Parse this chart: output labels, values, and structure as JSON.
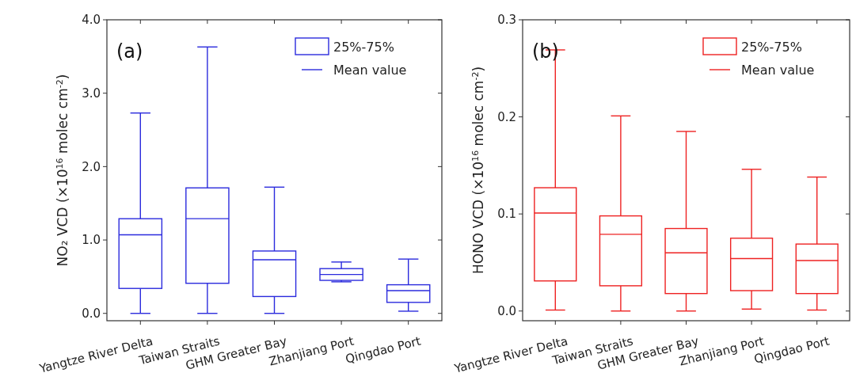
{
  "chart_data": [
    {
      "type": "box",
      "ylabel": "NO₂ VCD (×10$^{16}$ molec cm$^{-2}$)",
      "color": "#2b2bdd",
      "categories": [
        "Yangtze River Delta",
        "Taiwan Straits",
        "GHM Greater Bay",
        "Zhanjiang Port",
        "Qingdao Port"
      ],
      "boxes": [
        {
          "low": 0.0,
          "q1": 0.34,
          "mean": 1.07,
          "q3": 1.29,
          "high": 2.73
        },
        {
          "low": 0.0,
          "q1": 0.41,
          "mean": 1.29,
          "q3": 1.71,
          "high": 3.63
        },
        {
          "low": 0.0,
          "q1": 0.23,
          "mean": 0.73,
          "q3": 0.85,
          "high": 1.72
        },
        {
          "low": 0.43,
          "q1": 0.45,
          "mean": 0.53,
          "q3": 0.61,
          "high": 0.7
        },
        {
          "low": 0.03,
          "q1": 0.15,
          "mean": 0.31,
          "q3": 0.39,
          "high": 0.74
        }
      ],
      "ylim": [
        -0.1,
        4.0
      ],
      "yticks": [
        {
          "value": 0,
          "label": "0.0"
        },
        {
          "value": 1,
          "label": "1.0"
        },
        {
          "value": 2,
          "label": "2.0"
        },
        {
          "value": 3,
          "label": "3.0"
        },
        {
          "value": 4,
          "label": "4.0"
        }
      ],
      "annotations": [
        "(a)",
        "25%-75%",
        "Mean value"
      ]
    },
    {
      "type": "box",
      "ylabel": "HONO VCD (×10$^{16}$ molec cm$^{-2}$)",
      "color": "#ee2222",
      "categories": [
        "Yangtze River Delta",
        "Taiwan Straits",
        "GHM Greater Bay",
        "Zhanjiang Port",
        "Qingdao Port"
      ],
      "boxes": [
        {
          "low": 0.001,
          "q1": 0.031,
          "mean": 0.101,
          "q3": 0.127,
          "high": 0.269
        },
        {
          "low": 0.0,
          "q1": 0.026,
          "mean": 0.079,
          "q3": 0.098,
          "high": 0.201
        },
        {
          "low": 0.0,
          "q1": 0.018,
          "mean": 0.06,
          "q3": 0.085,
          "high": 0.185
        },
        {
          "low": 0.002,
          "q1": 0.021,
          "mean": 0.054,
          "q3": 0.075,
          "high": 0.146
        },
        {
          "low": 0.001,
          "q1": 0.018,
          "mean": 0.052,
          "q3": 0.069,
          "high": 0.138
        }
      ],
      "ylim": [
        -0.01,
        0.3
      ],
      "yticks": [
        {
          "value": 0,
          "label": "0.0"
        },
        {
          "value": 0.1,
          "label": "0.1"
        },
        {
          "value": 0.2,
          "label": "0.2"
        },
        {
          "value": 0.3,
          "label": "0.3"
        }
      ],
      "annotations": [
        "(b)",
        "25%-75%",
        "Mean value"
      ]
    }
  ]
}
